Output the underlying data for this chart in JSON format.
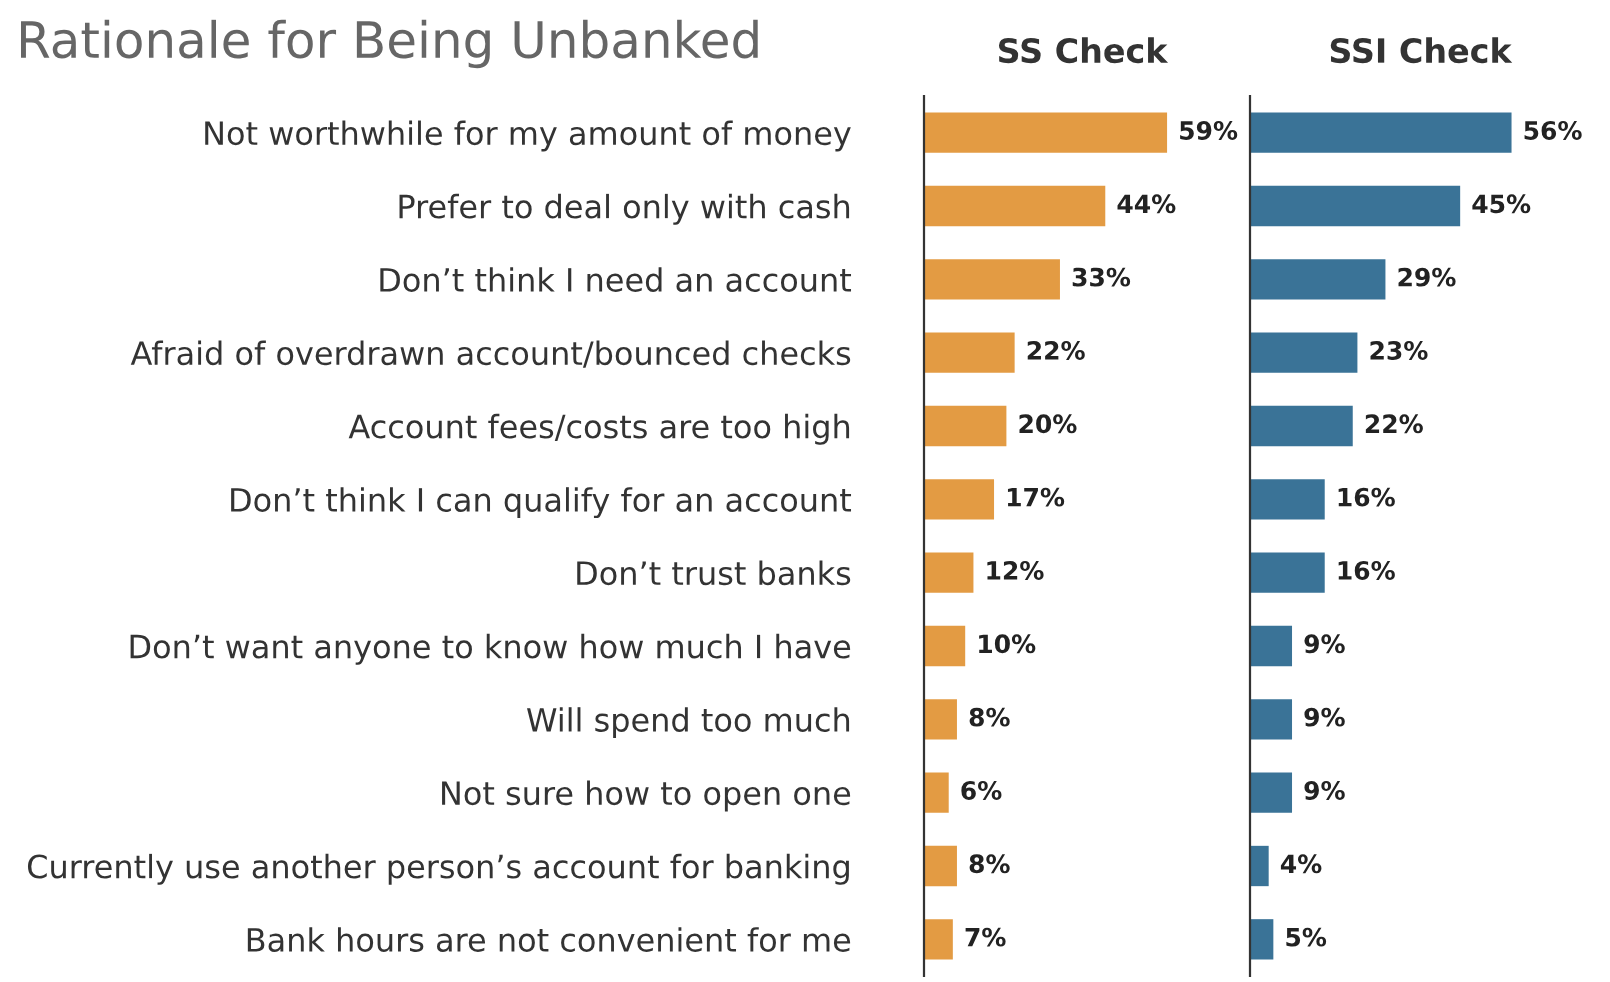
{
  "chart_data": [
    {
      "type": "bar",
      "orientation": "horizontal",
      "title": "SS Check",
      "annotations": [
        "Rationale for Being Unbanked"
      ],
      "categories": [
        "Not worthwhile for my amount of money",
        "Prefer to deal only with cash",
        "Don’t think I need an account",
        "Afraid of overdrawn account/bounced checks",
        "Account fees/costs are too high",
        "Don’t think I can qualify for an account",
        "Don’t trust banks",
        "Don’t want anyone to know how much I have",
        "Will spend too much",
        "Not sure how to open one",
        "Currently use another person’s account for banking",
        "Bank hours are not convenient for me"
      ],
      "series": [
        {
          "color": "#e39b43",
          "values": [
            59,
            44,
            33,
            22,
            20,
            17,
            12,
            10,
            8,
            6,
            8,
            7
          ],
          "value_labels": [
            "59%",
            "44%",
            "33%",
            "22%",
            "20%",
            "17%",
            "12%",
            "10%",
            "8%",
            "6%",
            "8%",
            "7%"
          ]
        }
      ],
      "grid": false,
      "legend": false
    },
    {
      "type": "bar",
      "orientation": "horizontal",
      "title": "SSI Check",
      "categories": [
        null,
        null,
        null,
        null,
        null,
        null,
        null,
        null,
        null,
        null,
        null,
        null
      ],
      "series": [
        {
          "color": "#3a7397",
          "values": [
            56,
            45,
            29,
            23,
            22,
            16,
            16,
            9,
            9,
            9,
            4,
            5
          ],
          "value_labels": [
            "56%",
            "45%",
            "29%",
            "23%",
            "22%",
            "16%",
            "16%",
            "9%",
            "9%",
            "9%",
            "4%",
            "5%"
          ]
        }
      ],
      "grid": false,
      "legend": false
    }
  ]
}
